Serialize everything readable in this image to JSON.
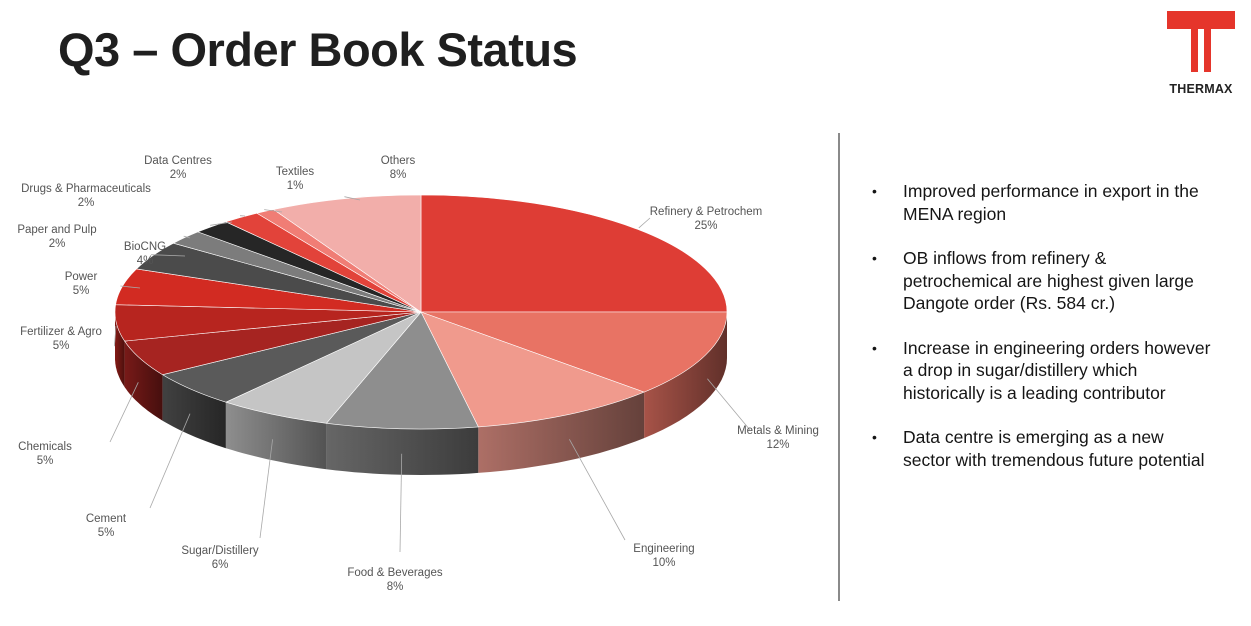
{
  "title": "Q3 – Order Book Status",
  "logo": {
    "text": "THERMAX",
    "color": "#e5352b"
  },
  "chart_data": {
    "type": "pie",
    "style": "3d",
    "slices": [
      {
        "label": "Refinery & Petrochem",
        "value": 25,
        "display": "25%",
        "color": "#de3d35"
      },
      {
        "label": "Metals & Mining",
        "value": 12,
        "display": "12%",
        "color": "#e87364"
      },
      {
        "label": "Engineering",
        "value": 10,
        "display": "10%",
        "color": "#f09a8d"
      },
      {
        "label": "Food & Beverages",
        "value": 8,
        "display": "8%",
        "color": "#8e8e8e"
      },
      {
        "label": "Sugar/Distillery",
        "value": 6,
        "display": "6%",
        "color": "#c5c5c5"
      },
      {
        "label": "Cement",
        "value": 5,
        "display": "5%",
        "color": "#5a5a5a"
      },
      {
        "label": "Chemicals",
        "value": 5,
        "display": "5%",
        "color": "#a62421"
      },
      {
        "label": "Fertilizer & Agro",
        "value": 5,
        "display": "5%",
        "color": "#b7251f"
      },
      {
        "label": "Power",
        "value": 5,
        "display": "5%",
        "color": "#d22b22"
      },
      {
        "label": "BioCNG",
        "value": 4,
        "display": "4%",
        "color": "#4b4b4b"
      },
      {
        "label": "Paper and Pulp",
        "value": 2,
        "display": "2%",
        "color": "#7c7c7c"
      },
      {
        "label": "Drugs & Pharmaceuticals",
        "value": 2,
        "display": "2%",
        "color": "#262626"
      },
      {
        "label": "Data Centres",
        "value": 2,
        "display": "2%",
        "color": "#e2433a"
      },
      {
        "label": "Textiles",
        "value": 1,
        "display": "1%",
        "color": "#f07d75"
      },
      {
        "label": "Others",
        "value": 8,
        "display": "8%",
        "color": "#f2aeaa"
      }
    ]
  },
  "bullets": [
    "Improved performance in export in the MENA region",
    "OB inflows from refinery & petrochemical are highest given large Dangote order (Rs. 584 cr.)",
    "Increase in engineering orders however a drop in sugar/distillery which historically is a leading contributor",
    "Data centre is emerging as a new sector with tremendous future potential"
  ]
}
